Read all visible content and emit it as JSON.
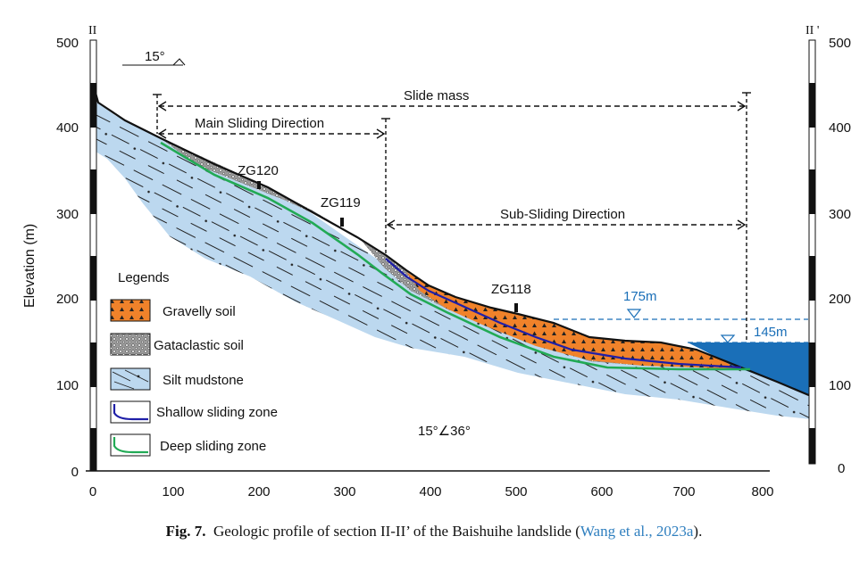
{
  "left_section_label": "II",
  "right_section_label": "II '",
  "y_axis_label": "Elevation (m)",
  "y_ticks": [
    "0",
    "100",
    "200",
    "300",
    "400",
    "500"
  ],
  "x_ticks": [
    "0",
    "100",
    "200",
    "300",
    "400",
    "500",
    "600",
    "700",
    "800"
  ],
  "scale_label": "15°",
  "labels": {
    "slide_mass": "Slide mass",
    "main_direction": "Main Sliding Direction",
    "sub_direction": "Sub-Sliding Direction",
    "boreholes": [
      "ZG120",
      "ZG119",
      "ZG118"
    ],
    "water_175": "175m",
    "water_145": "145m",
    "attitude": "15°∠36°"
  },
  "legend": {
    "title": "Legends",
    "items": [
      {
        "label": "Gravelly soil",
        "color": "#f0822a"
      },
      {
        "label": "Gataclastic soil",
        "color": "#9a9a9a"
      },
      {
        "label": "Silt mudstone",
        "color": "#bcd8ef"
      },
      {
        "label": "Shallow sliding zone",
        "color": "#1f1fa8"
      },
      {
        "label": "Deep sliding zone",
        "color": "#22aa55"
      }
    ]
  },
  "caption": {
    "fig": "Fig. 7.",
    "text": "Geologic profile of section II-II’ of the Baishuihe landslide (",
    "ref": "Wang et al., 2023a",
    "end": ")."
  }
}
